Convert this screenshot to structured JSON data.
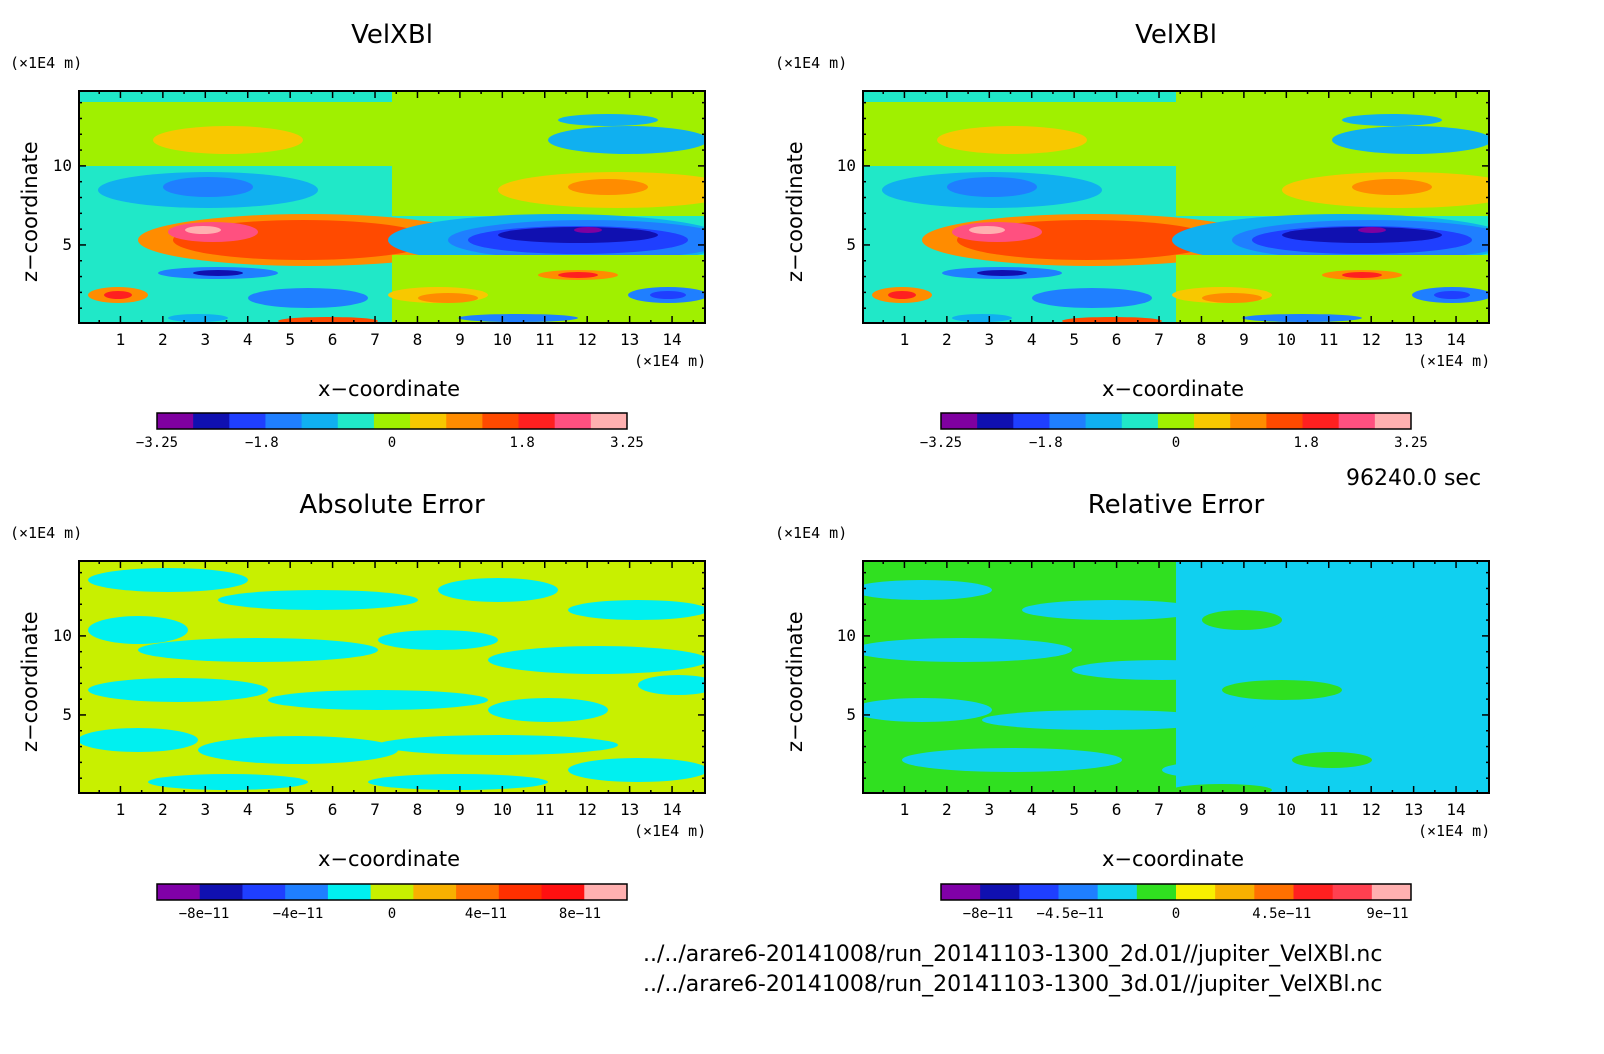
{
  "time_label": "96240.0 sec",
  "files": [
    "../../arare6-20141008/run_20141103-1300_2d.01//jupiter_VelXBl.nc",
    "../../arare6-20141008/run_20141103-1300_3d.01//jupiter_VelXBl.nc"
  ],
  "chart_data": [
    {
      "type": "heatmap",
      "title": "VelXBl",
      "xlabel": "x−coordinate",
      "ylabel": "z−coordinate",
      "x_unit": "(×1E4 m)",
      "y_unit": "(×1E4 m)",
      "xlim": [
        0,
        14.8
      ],
      "ylim": [
        0,
        14.8
      ],
      "x_ticks": [
        "1",
        "2",
        "3",
        "4",
        "5",
        "6",
        "7",
        "8",
        "9",
        "10",
        "11",
        "12",
        "13",
        "14"
      ],
      "y_ticks": [
        "5",
        "10"
      ],
      "colorbar": {
        "colors": [
          "#7f00a0",
          "#1010b0",
          "#1f3fff",
          "#1f7fff",
          "#10b0f0",
          "#20e8c8",
          "#a0f000",
          "#f8c800",
          "#ff8c00",
          "#ff4a00",
          "#ff2020",
          "#ff5080",
          "#ffb0b0"
        ],
        "tick_labels": [
          "−3.25",
          "−1.8",
          "0",
          "1.8",
          "3.25"
        ],
        "tick_values": [
          -3.25,
          -1.8,
          0,
          1.8,
          3.25
        ],
        "range": [
          -3.25,
          3.25
        ]
      }
    },
    {
      "type": "heatmap",
      "title": "VelXBl",
      "xlabel": "x−coordinate",
      "ylabel": "z−coordinate",
      "x_unit": "(×1E4 m)",
      "y_unit": "(×1E4 m)",
      "xlim": [
        0,
        14.8
      ],
      "ylim": [
        0,
        14.8
      ],
      "x_ticks": [
        "1",
        "2",
        "3",
        "4",
        "5",
        "6",
        "7",
        "8",
        "9",
        "10",
        "11",
        "12",
        "13",
        "14"
      ],
      "y_ticks": [
        "5",
        "10"
      ],
      "colorbar": {
        "colors": [
          "#7f00a0",
          "#1010b0",
          "#1f3fff",
          "#1f7fff",
          "#10b0f0",
          "#20e8c8",
          "#a0f000",
          "#f8c800",
          "#ff8c00",
          "#ff4a00",
          "#ff2020",
          "#ff5080",
          "#ffb0b0"
        ],
        "tick_labels": [
          "−3.25",
          "−1.8",
          "0",
          "1.8",
          "3.25"
        ],
        "tick_values": [
          -3.25,
          -1.8,
          0,
          1.8,
          3.25
        ],
        "range": [
          -3.25,
          3.25
        ]
      }
    },
    {
      "type": "heatmap",
      "title": "Absolute Error",
      "xlabel": "x−coordinate",
      "ylabel": "z−coordinate",
      "x_unit": "(×1E4 m)",
      "y_unit": "(×1E4 m)",
      "xlim": [
        0,
        14.8
      ],
      "ylim": [
        0,
        14.8
      ],
      "x_ticks": [
        "1",
        "2",
        "3",
        "4",
        "5",
        "6",
        "7",
        "8",
        "9",
        "10",
        "11",
        "12",
        "13",
        "14"
      ],
      "y_ticks": [
        "5",
        "10"
      ],
      "colorbar": {
        "colors": [
          "#8000a8",
          "#1010b0",
          "#1f3fff",
          "#1f7fff",
          "#00f0f0",
          "#c8f000",
          "#f8b000",
          "#ff7000",
          "#ff3000",
          "#ff1010",
          "#ffb0b0"
        ],
        "tick_labels": [
          "−8e−11",
          "−4e−11",
          "0",
          "4e−11",
          "8e−11"
        ],
        "tick_values": [
          -8e-11,
          -4e-11,
          0,
          4e-11,
          8e-11
        ],
        "range": [
          -1e-10,
          1e-10
        ]
      }
    },
    {
      "type": "heatmap",
      "title": "Relative Error",
      "xlabel": "x−coordinate",
      "ylabel": "z−coordinate",
      "x_unit": "(×1E4 m)",
      "y_unit": "(×1E4 m)",
      "xlim": [
        0,
        14.8
      ],
      "ylim": [
        0,
        14.8
      ],
      "x_ticks": [
        "1",
        "2",
        "3",
        "4",
        "5",
        "6",
        "7",
        "8",
        "9",
        "10",
        "11",
        "12",
        "13",
        "14"
      ],
      "y_ticks": [
        "5",
        "10"
      ],
      "colorbar": {
        "colors": [
          "#8000a8",
          "#1010b0",
          "#1f3fff",
          "#1f7fff",
          "#10d0f0",
          "#30e020",
          "#f8f000",
          "#f8b000",
          "#ff7000",
          "#ff2020",
          "#ff4050",
          "#ffb0b0"
        ],
        "tick_labels": [
          "−8e−11",
          "−4.5e−11",
          "0",
          "4.5e−11",
          "9e−11"
        ],
        "tick_values": [
          -8e-11,
          -4.5e-11,
          0,
          4.5e-11,
          9e-11
        ],
        "range": [
          -1e-10,
          1e-10
        ]
      }
    }
  ]
}
